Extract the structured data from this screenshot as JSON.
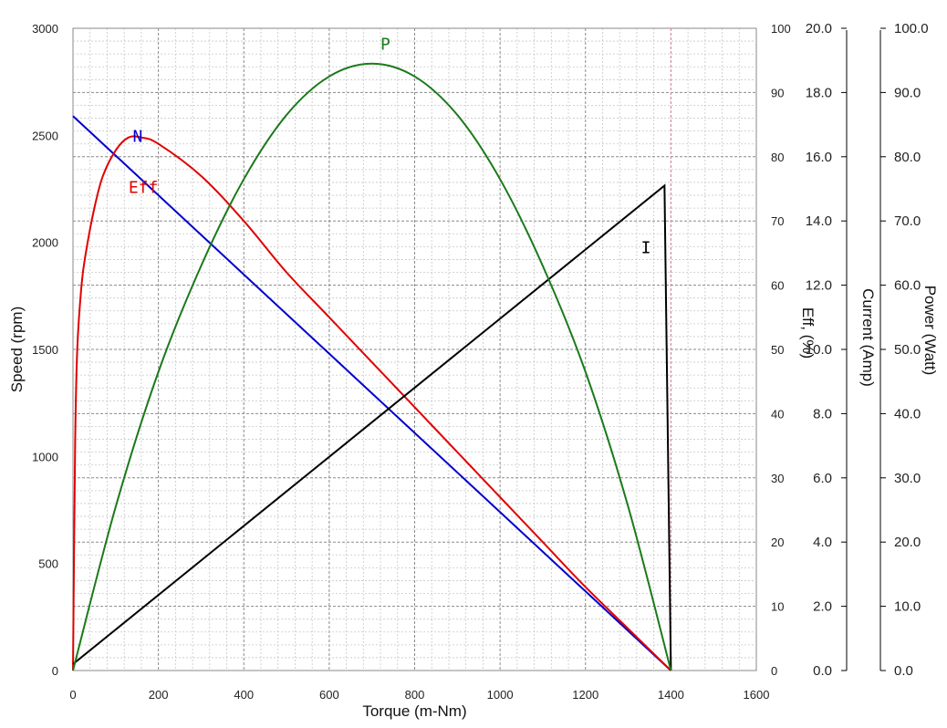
{
  "chart_data": {
    "type": "line",
    "title": "",
    "grid": true,
    "x_axis": {
      "label": "Torque (m-Nm)",
      "range": [
        0,
        1600
      ],
      "ticks": [
        0,
        200,
        400,
        600,
        800,
        1000,
        1200,
        1400,
        1600
      ],
      "tick_labels": [
        "0",
        "200",
        "400",
        "600",
        "800",
        "1000",
        "1200",
        "1400",
        "1600"
      ]
    },
    "y_axes": {
      "speed": {
        "label": "Speed (rpm)",
        "range": [
          0,
          3000
        ],
        "tick_labels": [
          "0",
          "500",
          "1000",
          "1500",
          "2000",
          "2500",
          "3000"
        ],
        "color": "#000000"
      },
      "efficiency": {
        "label": "Eff, (%)",
        "range": [
          0,
          100
        ],
        "tick_labels": [
          "0",
          "10",
          "20",
          "30",
          "40",
          "50",
          "60",
          "70",
          "80",
          "90",
          "100"
        ],
        "color": "#e00000"
      },
      "current": {
        "label": "Current (Amp)",
        "range": [
          0,
          20
        ],
        "tick_labels": [
          "0.0",
          "2.0",
          "4.0",
          "6.0",
          "8.0",
          "10.0",
          "12.0",
          "14.0",
          "16.0",
          "18.0",
          "20.0"
        ],
        "color": "#000000"
      },
      "power": {
        "label": "Power (Watt)",
        "range": [
          0,
          100
        ],
        "tick_labels": [
          "0.0",
          "10.0",
          "20.0",
          "30.0",
          "40.0",
          "50.0",
          "60.0",
          "70.0",
          "80.0",
          "90.0",
          "100.0"
        ],
        "color": "#1a7a1a"
      }
    },
    "series": [
      {
        "name": "N",
        "axis": "speed",
        "color": "#0000cc",
        "points": [
          [
            0,
            2590
          ],
          [
            1400,
            0
          ]
        ]
      },
      {
        "name": "Eff",
        "axis": "efficiency",
        "color": "#e00000",
        "points": [
          [
            0,
            0
          ],
          [
            5,
            35
          ],
          [
            10,
            50
          ],
          [
            20,
            60
          ],
          [
            30,
            65
          ],
          [
            50,
            72
          ],
          [
            70,
            77
          ],
          [
            100,
            81
          ],
          [
            130,
            83
          ],
          [
            160,
            83
          ],
          [
            200,
            82
          ],
          [
            300,
            77
          ],
          [
            400,
            70
          ],
          [
            500,
            62
          ],
          [
            600,
            55
          ],
          [
            700,
            48
          ],
          [
            800,
            41
          ],
          [
            900,
            34
          ],
          [
            1000,
            27
          ],
          [
            1100,
            20
          ],
          [
            1200,
            13
          ],
          [
            1300,
            6.5
          ],
          [
            1400,
            0
          ]
        ]
      },
      {
        "name": "I",
        "axis": "current",
        "color": "#000000",
        "points": [
          [
            0,
            0.2
          ],
          [
            1385,
            15.1
          ],
          [
            1400,
            0
          ]
        ]
      },
      {
        "name": "P",
        "axis": "power",
        "color": "#1a7a1a",
        "points": [
          [
            0,
            0
          ],
          [
            100,
            25.5
          ],
          [
            200,
            46.5
          ],
          [
            300,
            63
          ],
          [
            400,
            76.5
          ],
          [
            500,
            86.5
          ],
          [
            600,
            92.5
          ],
          [
            700,
            94.5
          ],
          [
            800,
            92.5
          ],
          [
            900,
            86.5
          ],
          [
            1000,
            76.5
          ],
          [
            1100,
            63
          ],
          [
            1200,
            46.5
          ],
          [
            1300,
            25.5
          ],
          [
            1400,
            0
          ]
        ]
      }
    ],
    "annotations": [
      {
        "text": "N",
        "color": "#0000cc",
        "x": 140,
        "y_speed": 2470
      },
      {
        "text": "Eff",
        "color": "#e00000",
        "x": 130,
        "y_speed": 2230
      },
      {
        "text": "P",
        "color": "#1a7a1a",
        "x": 720,
        "y_speed": 2900
      },
      {
        "text": "I",
        "color": "#000000",
        "x": 1330,
        "y_speed": 1950
      }
    ]
  }
}
